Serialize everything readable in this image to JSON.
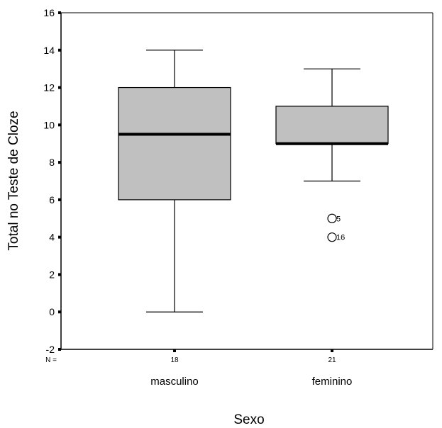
{
  "chart_data": {
    "type": "boxplot",
    "xlabel": "Sexo",
    "ylabel": "Total no Teste de Cloze",
    "ylim": [
      -2,
      16
    ],
    "yticks": [
      -2,
      0,
      2,
      4,
      6,
      8,
      10,
      12,
      14,
      16
    ],
    "n_prefix": "N =",
    "categories": [
      {
        "name": "masculino",
        "n": "18",
        "min": 0,
        "q1": 6,
        "median": 9.5,
        "q3": 12,
        "max": 14,
        "outliers": []
      },
      {
        "name": "feminino",
        "n": "21",
        "min": 7,
        "q1": 9,
        "median": 9,
        "q3": 11,
        "max": 13,
        "outliers": [
          {
            "value": 5,
            "label": "5"
          },
          {
            "value": 4,
            "label": "16"
          }
        ]
      }
    ],
    "colors": {
      "box_fill": "#c0c0c0",
      "stroke": "#000000"
    }
  }
}
